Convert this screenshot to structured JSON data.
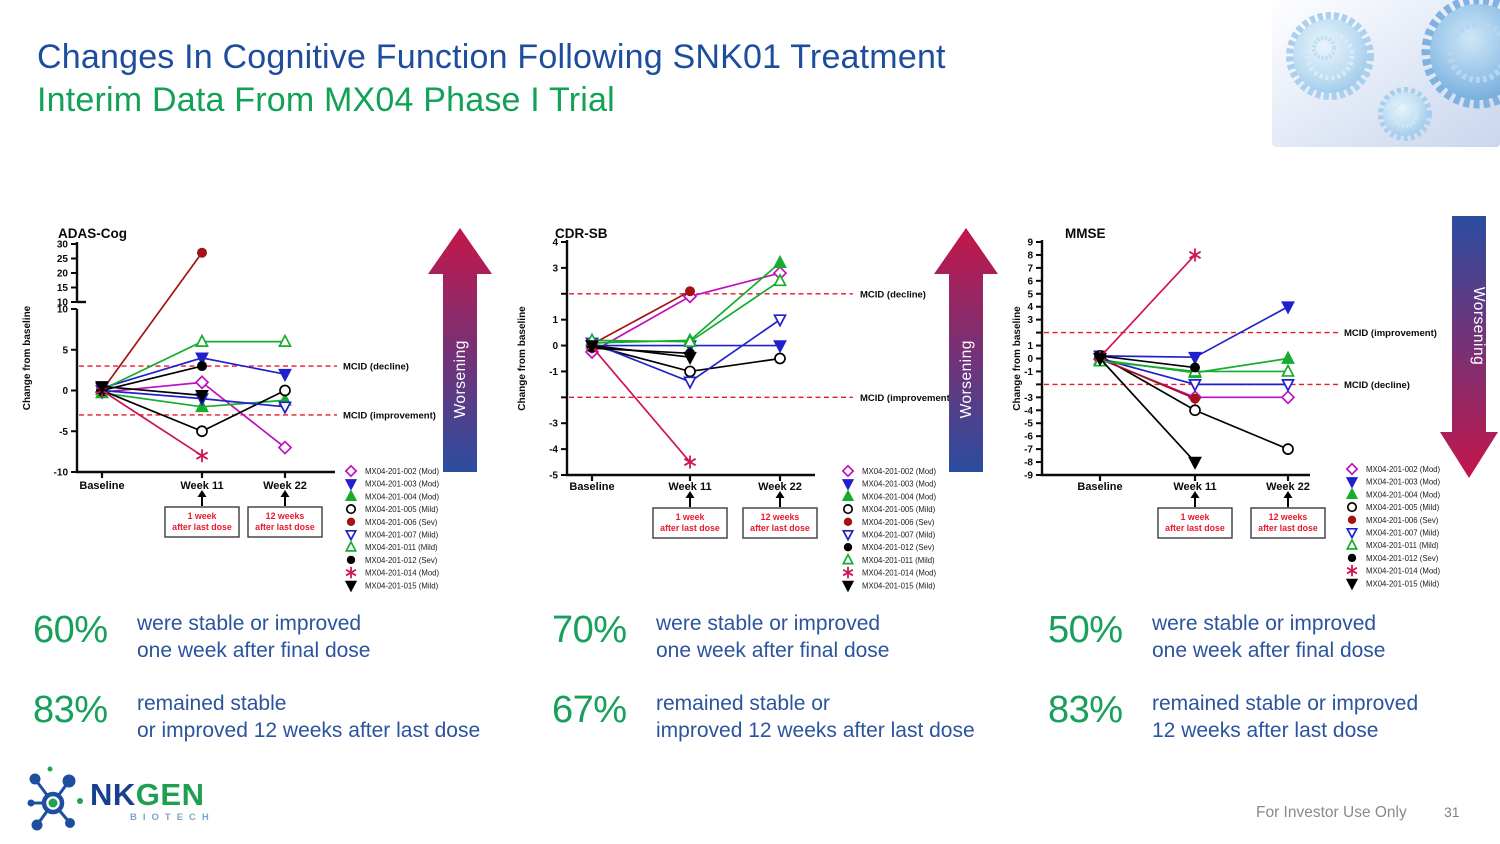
{
  "slide": {
    "title_line1": "Changes In Cognitive Function Following SNK01 Treatment",
    "title_line2": "Interim Data From MX04 Phase I Trial",
    "footer_note": "For Investor Use Only",
    "page_number": "31",
    "logo": {
      "nk": "NK",
      "gen": "GEN",
      "biotech": "BIOTECH"
    }
  },
  "colors": {
    "title_blue": "#1D4E9E",
    "title_green": "#12A156",
    "stat_green": "#16A05A",
    "stat_blue": "#2B549E",
    "mcid_red": "#E8192C",
    "arrow_red": "#C4164A",
    "arrow_blue": "#2B4DA0",
    "axis_black": "#0A0A0A",
    "footer_gray": "#8A8A8A"
  },
  "annotations": {
    "worsening_label": "Worsening",
    "dose_note_week11": [
      "1 week",
      "after last dose"
    ],
    "dose_note_week22": [
      "12 weeks",
      "after last dose"
    ]
  },
  "stats": [
    {
      "pct": "60%",
      "line1": "were stable or improved",
      "line2": "one week after final dose"
    },
    {
      "pct": "83%",
      "line1": "remained stable",
      "line2": "or improved 12 weeks after last dose"
    },
    {
      "pct": "70%",
      "line1": "were stable or improved",
      "line2": "one week after final dose"
    },
    {
      "pct": "67%",
      "line1": "remained stable or",
      "line2": "improved 12 weeks after last dose"
    },
    {
      "pct": "50%",
      "line1": "were stable or improved",
      "line2": "one week after final dose"
    },
    {
      "pct": "83%",
      "line1": "remained stable or improved",
      "line2": "12 weeks after last dose"
    }
  ],
  "chart_data": [
    {
      "type": "line",
      "title": "ADAS-Cog",
      "ylabel": "Change from baseline",
      "categories": [
        "Baseline",
        "Week 11",
        "Week 22"
      ],
      "axis": {
        "style": "broken",
        "upper": {
          "min": 10,
          "max": 30,
          "ticks": [
            30,
            25,
            20,
            15,
            10
          ]
        },
        "lower": {
          "min": -10,
          "max": 10,
          "ticks": [
            10,
            5,
            0,
            -5,
            -10
          ]
        }
      },
      "mcid": [
        {
          "value": 3,
          "label": "MCID (decline)"
        },
        {
          "value": -3,
          "label": "MCID (improvement)"
        }
      ],
      "worsening": "up",
      "series": [
        {
          "name": "MX04-201-002 (Mod)",
          "marker": "diamond-open",
          "color": "#BF10BF",
          "values": [
            -0.2,
            1,
            -7
          ]
        },
        {
          "name": "MX04-201-003 (Mod)",
          "marker": "triangle-down-filled",
          "color": "#2121CC",
          "values": [
            0.3,
            4,
            2
          ]
        },
        {
          "name": "MX04-201-004 (Mod)",
          "marker": "triangle-up-filled",
          "color": "#17AC2E",
          "values": [
            -0.3,
            -2,
            -1.2
          ]
        },
        {
          "name": "MX04-201-005 (Mild)",
          "marker": "circle-open",
          "color": "#000000",
          "values": [
            0,
            -5,
            0
          ]
        },
        {
          "name": "MX04-201-006 (Sev)",
          "marker": "circle-filled",
          "color": "#A31313",
          "values": [
            0,
            27,
            null
          ]
        },
        {
          "name": "MX04-201-007 (Mild)",
          "marker": "triangle-down-open",
          "color": "#2121CC",
          "values": [
            0,
            -1,
            -2
          ]
        },
        {
          "name": "MX04-201-011 (Mild)",
          "marker": "triangle-up-open",
          "color": "#17AC2E",
          "values": [
            0.1,
            6,
            6
          ]
        },
        {
          "name": "MX04-201-012 (Sev)",
          "marker": "circle-filled",
          "color": "#000000",
          "values": [
            0,
            3,
            null
          ]
        },
        {
          "name": "MX04-201-014 (Mod)",
          "marker": "asterisk",
          "color": "#CE1458",
          "values": [
            0,
            -8,
            null
          ]
        },
        {
          "name": "MX04-201-015 (Mild)",
          "marker": "triangle-down-filled",
          "color": "#000000",
          "values": [
            0.5,
            -0.6,
            null
          ]
        }
      ]
    },
    {
      "type": "line",
      "title": "CDR-SB",
      "ylabel": "Change from baseline",
      "categories": [
        "Baseline",
        "Week 11",
        "Week 22"
      ],
      "axis": {
        "style": "linear",
        "min": -5,
        "max": 4,
        "step": 1,
        "hide_labels": [
          2,
          -2
        ]
      },
      "mcid": [
        {
          "value": 2,
          "label": "MCID (decline)"
        },
        {
          "value": -2,
          "label": "MCID (improvement)"
        }
      ],
      "worsening": "up",
      "series": [
        {
          "name": "MX04-201-002 (Mod)",
          "marker": "diamond-open",
          "color": "#BF10BF",
          "values": [
            -0.25,
            1.9,
            2.8
          ]
        },
        {
          "name": "MX04-201-003 (Mod)",
          "marker": "triangle-down-filled",
          "color": "#2121CC",
          "values": [
            0,
            0,
            0
          ]
        },
        {
          "name": "MX04-201-004 (Mod)",
          "marker": "triangle-up-filled",
          "color": "#17AC2E",
          "values": [
            0.1,
            0.2,
            3.2
          ]
        },
        {
          "name": "MX04-201-005 (Mild)",
          "marker": "circle-open",
          "color": "#000000",
          "values": [
            0,
            -1,
            -0.5
          ]
        },
        {
          "name": "MX04-201-006 (Sev)",
          "marker": "circle-filled",
          "color": "#A31313",
          "values": [
            0.05,
            2.1,
            null
          ]
        },
        {
          "name": "MX04-201-007 (Mild)",
          "marker": "triangle-down-open",
          "color": "#2121CC",
          "values": [
            0.1,
            -1.4,
            1
          ]
        },
        {
          "name": "MX04-201-012 (Sev)",
          "marker": "circle-filled",
          "color": "#000000",
          "values": [
            -0.1,
            -0.3,
            null
          ]
        },
        {
          "name": "MX04-201-011 (Mild)",
          "marker": "triangle-up-open",
          "color": "#17AC2E",
          "values": [
            0.2,
            0.15,
            2.5
          ]
        },
        {
          "name": "MX04-201-014 (Mod)",
          "marker": "asterisk",
          "color": "#CE1458",
          "values": [
            -0.05,
            -4.5,
            null
          ]
        },
        {
          "name": "MX04-201-015 (Mild)",
          "marker": "triangle-down-filled",
          "color": "#000000",
          "values": [
            0,
            -0.45,
            null
          ]
        }
      ]
    },
    {
      "type": "line",
      "title": "MMSE",
      "ylabel": "Change from baseline",
      "categories": [
        "Baseline",
        "Week 11",
        "Week 22"
      ],
      "axis": {
        "style": "linear",
        "min": -9,
        "max": 9,
        "step": 1,
        "hide_labels": [
          2,
          -2
        ]
      },
      "mcid": [
        {
          "value": 2,
          "label": "MCID (improvement)"
        },
        {
          "value": -2,
          "label": "MCID (decline)"
        }
      ],
      "worsening": "down",
      "series": [
        {
          "name": "MX04-201-002 (Mod)",
          "marker": "diamond-open",
          "color": "#BF10BF",
          "values": [
            -0.05,
            -3,
            -3
          ]
        },
        {
          "name": "MX04-201-003 (Mod)",
          "marker": "triangle-down-filled",
          "color": "#2121CC",
          "values": [
            0.2,
            0.1,
            4
          ]
        },
        {
          "name": "MX04-201-004 (Mod)",
          "marker": "triangle-up-filled",
          "color": "#17AC2E",
          "values": [
            -0.1,
            -1.1,
            0
          ]
        },
        {
          "name": "MX04-201-005 (Mild)",
          "marker": "circle-open",
          "color": "#000000",
          "values": [
            0.2,
            -4,
            -7
          ]
        },
        {
          "name": "MX04-201-006 (Sev)",
          "marker": "circle-filled",
          "color": "#A31313",
          "values": [
            0,
            -3.1,
            null
          ]
        },
        {
          "name": "MX04-201-007 (Mild)",
          "marker": "triangle-down-open",
          "color": "#2121CC",
          "values": [
            0,
            -2,
            -2
          ]
        },
        {
          "name": "MX04-201-011 (Mild)",
          "marker": "triangle-up-open",
          "color": "#17AC2E",
          "values": [
            -0.2,
            -1,
            -1
          ]
        },
        {
          "name": "MX04-201-012 (Sev)",
          "marker": "circle-filled",
          "color": "#000000",
          "values": [
            0.2,
            -0.7,
            null
          ]
        },
        {
          "name": "MX04-201-014 (Mod)",
          "marker": "asterisk",
          "color": "#CE1458",
          "values": [
            0.1,
            8,
            null
          ]
        },
        {
          "name": "MX04-201-015 (Mild)",
          "marker": "triangle-down-filled",
          "color": "#000000",
          "values": [
            0,
            -8,
            null
          ]
        }
      ]
    }
  ]
}
